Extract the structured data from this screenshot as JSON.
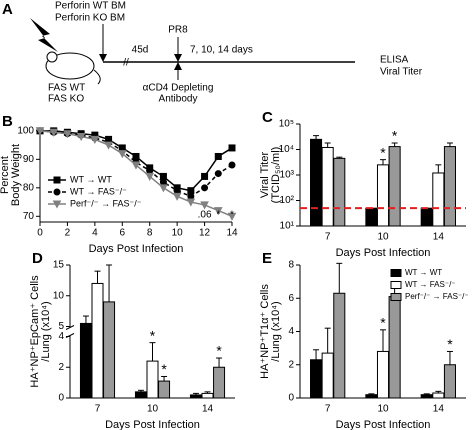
{
  "schematic": {
    "panel": "A",
    "bm_labels": [
      "Perforin WT BM",
      "Perforin KO BM"
    ],
    "host_labels": [
      "FAS WT",
      "FAS KO"
    ],
    "interval": "45d",
    "infection": "PR8",
    "timepoints": "7, 10, 14 days",
    "readout": [
      "ELISA",
      "Viral Titer"
    ],
    "treatment": [
      "αCD4 Depleting",
      "Antibody"
    ]
  },
  "chart_data": [
    {
      "type": "line",
      "panel": "B",
      "y_label": [
        "Percent",
        "Body Weight"
      ],
      "x_label": "Days Post Infection",
      "x": [
        0,
        1,
        2,
        3,
        4,
        5,
        6,
        7,
        8,
        9,
        10,
        11,
        12,
        13,
        14
      ],
      "xlim": [
        0,
        14
      ],
      "xticks": [
        0,
        2,
        4,
        6,
        8,
        10,
        12,
        14
      ],
      "ylim": [
        68,
        101
      ],
      "yticks": [
        70,
        80,
        90,
        100
      ],
      "legend": "lower-left",
      "series": [
        {
          "name": "WT → WT",
          "color": "#000000",
          "line_style": "solid",
          "marker": "square",
          "values": [
            100,
            100,
            99.5,
            99,
            98.5,
            97,
            94,
            91,
            87,
            84,
            80,
            79,
            84,
            91,
            94
          ]
        },
        {
          "name": "WT → FAS⁻/⁻",
          "color": "#000000",
          "line_style": "dashed",
          "marker": "circle",
          "values": [
            100,
            99.5,
            99,
            98.5,
            97.5,
            96,
            93,
            89,
            86,
            82,
            79,
            77,
            80,
            85,
            88
          ]
        },
        {
          "name": "Perf⁻/⁻ → FAS⁻/⁻",
          "color": "#808080",
          "line_style": "solid",
          "marker": "triangle",
          "values": [
            100,
            99.5,
            99,
            98,
            97,
            95,
            92,
            88,
            84,
            80,
            77,
            75,
            74,
            72,
            70
          ],
          "significance": [
            null,
            null,
            null,
            null,
            null,
            null,
            null,
            null,
            null,
            null,
            null,
            null,
            ".06",
            "*",
            "*"
          ]
        }
      ]
    },
    {
      "type": "bar",
      "panel": "C",
      "y_label": [
        "Viral Titer",
        "(TCID₅₀/ml)"
      ],
      "x_label": "Days Post Infection",
      "categories": [
        "7",
        "10",
        "14"
      ],
      "log_scale": true,
      "ylim": [
        10,
        100000
      ],
      "yticks": [
        {
          "value": 10,
          "label": "10¹"
        },
        {
          "value": 100,
          "label": "10²"
        },
        {
          "value": 1000,
          "label": "10³"
        },
        {
          "value": 10000,
          "label": "10⁴"
        },
        {
          "value": 100000,
          "label": "10⁵"
        }
      ],
      "reference_line": {
        "value": 50,
        "color": "#e02020"
      },
      "series": [
        {
          "name": "WT → WT",
          "color": "#000000",
          "values": [
            25000,
            50,
            50
          ],
          "errors": [
            10000,
            null,
            null
          ]
        },
        {
          "name": "WT → FAS⁻/⁻",
          "color": "#ffffff",
          "values": [
            12000,
            2500,
            1200
          ],
          "errors": [
            6000,
            1500,
            1300
          ],
          "significance": [
            null,
            "*",
            null
          ]
        },
        {
          "name": "Perf⁻/⁻ → FAS⁻/⁻",
          "color": "#999999",
          "values": [
            4500,
            13000,
            13000
          ],
          "errors": [
            500,
            5000,
            5000
          ],
          "significance": [
            null,
            "*",
            null
          ]
        }
      ]
    },
    {
      "type": "bar",
      "panel": "D",
      "y_label": [
        "HA⁺NP⁺EpCam⁺ Cells",
        "/Lung (x10⁴)"
      ],
      "x_label": "Days Post Infection",
      "categories": [
        "7",
        "10",
        "14"
      ],
      "ylim": [
        0,
        15
      ],
      "axis_break": [
        4,
        5
      ],
      "yticks": [
        0,
        2,
        4,
        5,
        10,
        15
      ],
      "series": [
        {
          "name": "WT → WT",
          "color": "#000000",
          "values": [
            5.5,
            0.4,
            0.2
          ],
          "errors": [
            1.2,
            0.1,
            0.1
          ]
        },
        {
          "name": "WT → FAS⁻/⁻",
          "color": "#ffffff",
          "values": [
            12,
            2.4,
            0.3
          ],
          "errors": [
            2,
            1.2,
            0.1
          ],
          "significance": [
            null,
            "*",
            null
          ]
        },
        {
          "name": "Perf⁻/⁻ → FAS⁻/⁻",
          "color": "#999999",
          "values": [
            9,
            1.1,
            2.0
          ],
          "errors": [
            6,
            0.3,
            0.6
          ],
          "significance": [
            null,
            "*",
            "*"
          ]
        }
      ]
    },
    {
      "type": "bar",
      "panel": "E",
      "y_label": [
        "HA⁺NP⁺T1α⁺ Cells",
        "/Lung (x10⁴)"
      ],
      "x_label": "Days Post Infection",
      "categories": [
        "7",
        "10",
        "14"
      ],
      "ylim": [
        0,
        8
      ],
      "yticks": [
        0,
        2,
        4,
        6,
        8
      ],
      "legend": "upper-right",
      "series": [
        {
          "name": "WT → WT",
          "color": "#000000",
          "values": [
            2.3,
            0.2,
            0.2
          ],
          "errors": [
            0.6,
            0.05,
            0.05
          ]
        },
        {
          "name": "WT → FAS⁻/⁻",
          "color": "#ffffff",
          "values": [
            2.7,
            2.8,
            0.3
          ],
          "errors": [
            1.5,
            1.3,
            0.1
          ],
          "significance": [
            null,
            "*",
            null
          ]
        },
        {
          "name": "Perf⁻/⁻ → FAS⁻/⁻",
          "color": "#999999",
          "values": [
            6.3,
            6.1,
            2.0
          ],
          "errors": [
            1.8,
            0.8,
            0.8
          ],
          "significance": [
            null,
            "*",
            "*"
          ]
        }
      ]
    }
  ]
}
